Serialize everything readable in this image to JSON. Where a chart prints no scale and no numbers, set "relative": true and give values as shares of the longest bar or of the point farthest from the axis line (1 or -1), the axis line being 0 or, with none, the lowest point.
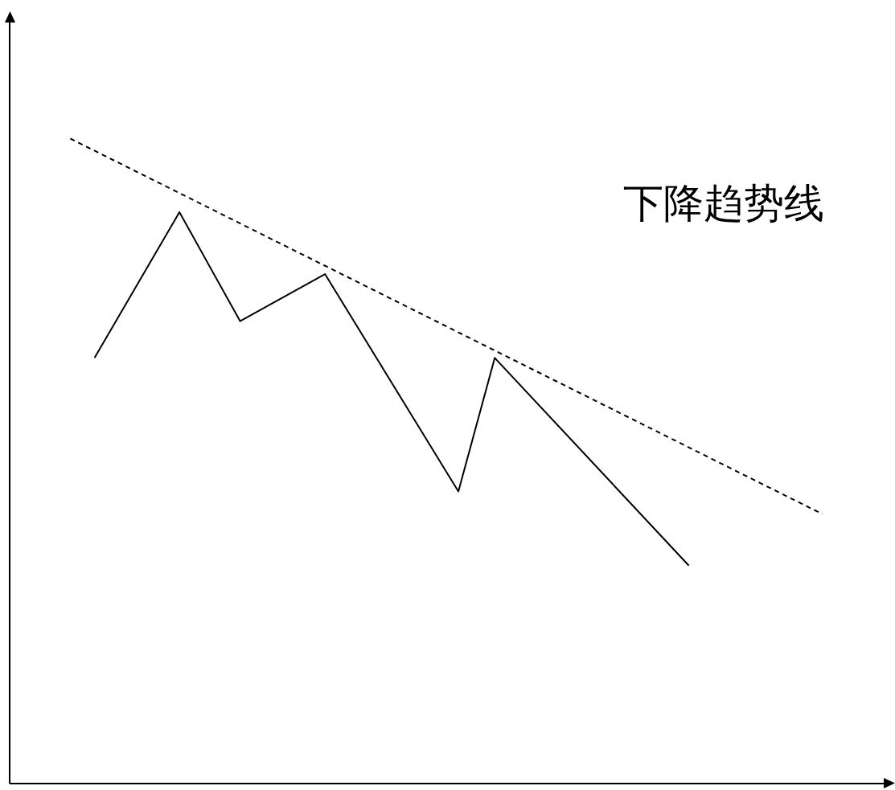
{
  "chart_data": {
    "type": "line",
    "relative": true,
    "categories": [
      null,
      null,
      null,
      null,
      null,
      null,
      null,
      null,
      null,
      null,
      null,
      null,
      null,
      null,
      null,
      null,
      null,
      null,
      null,
      null,
      null,
      null,
      null,
      null,
      null,
      null,
      null,
      null,
      null,
      null,
      null,
      null,
      null,
      null,
      null,
      null,
      null,
      null,
      null,
      null,
      null,
      null,
      null,
      null,
      null,
      null,
      null,
      null,
      null,
      null,
      null,
      null,
      null,
      null,
      null,
      null,
      null,
      null,
      null,
      null,
      null,
      null,
      null,
      null,
      null,
      null,
      null,
      null,
      null,
      null,
      null,
      null,
      null,
      null
    ],
    "series": [
      {
        "color": "#000000",
        "line_style": "solid",
        "values": [
          null,
          null,
          null,
          null,
          null,
          null,
          null,
          0.66,
          null,
          null,
          null,
          null,
          null,
          null,
          0.886,
          null,
          null,
          null,
          null,
          0.717,
          null,
          null,
          null,
          null,
          null,
          null,
          0.79,
          null,
          null,
          null,
          null,
          null,
          null,
          null,
          null,
          null,
          null,
          0.453,
          null,
          null,
          0.66,
          null,
          null,
          null,
          null,
          null,
          null,
          null,
          null,
          null,
          null,
          null,
          null,
          null,
          null,
          null,
          0.338,
          null,
          null,
          null,
          null,
          null,
          null,
          null,
          null,
          null,
          null,
          null,
          null,
          null,
          null,
          null,
          null,
          null
        ]
      },
      {
        "name": "下降趋势线",
        "color": "#000000",
        "line_style": "dashed",
        "values": [
          null,
          null,
          null,
          null,
          null,
          1,
          null,
          null,
          null,
          null,
          null,
          null,
          null,
          null,
          null,
          null,
          null,
          null,
          null,
          null,
          null,
          null,
          null,
          null,
          null,
          null,
          null,
          null,
          null,
          null,
          null,
          null,
          null,
          null,
          null,
          null,
          null,
          null,
          null,
          null,
          null,
          null,
          null,
          null,
          null,
          null,
          null,
          null,
          null,
          null,
          null,
          null,
          null,
          null,
          null,
          null,
          null,
          null,
          null,
          null,
          null,
          null,
          null,
          null,
          null,
          null,
          null,
          0.418,
          null,
          null,
          null,
          null,
          null,
          null
        ]
      }
    ]
  }
}
